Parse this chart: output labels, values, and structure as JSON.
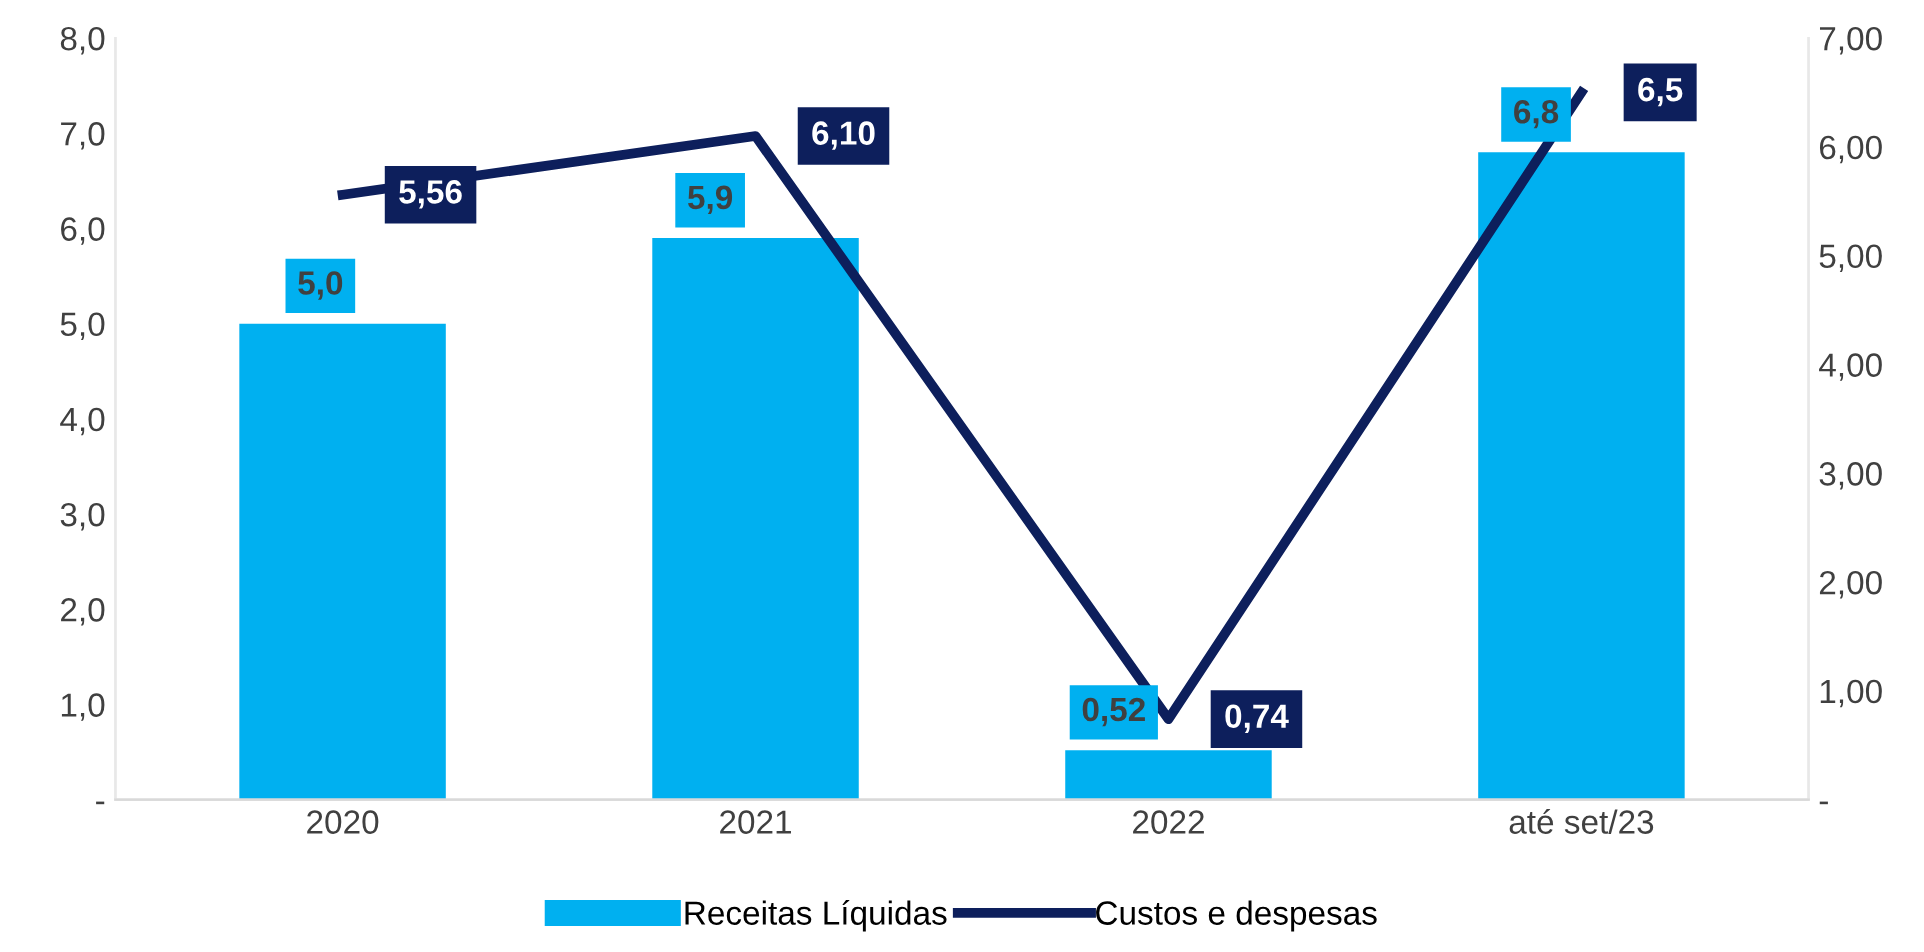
{
  "chart_data": {
    "type": "bar",
    "categories": [
      "2020",
      "2021",
      "2022",
      "até set/23"
    ],
    "series": [
      {
        "name": "Receitas Líquidas",
        "type": "bar",
        "color": "#00b0f0",
        "values": [
          5.0,
          5.9,
          0.52,
          6.8
        ],
        "value_labels": [
          "5,0",
          "5,9",
          "0,52",
          "6,8"
        ]
      },
      {
        "name": "Custos e despesas",
        "type": "line",
        "axis": "y2",
        "color": "#0d1f5c",
        "values": [
          5.56,
          6.1,
          0.74,
          6.5
        ],
        "value_labels": [
          "5,56",
          "6,10",
          "0,74",
          "6,5"
        ]
      }
    ],
    "ylim": [
      0,
      8
    ],
    "yticks": [
      {
        "value": 0,
        "label": "-"
      },
      {
        "value": 1,
        "label": "1,0"
      },
      {
        "value": 2,
        "label": "2,0"
      },
      {
        "value": 3,
        "label": "3,0"
      },
      {
        "value": 4,
        "label": "4,0"
      },
      {
        "value": 5,
        "label": "5,0"
      },
      {
        "value": 6,
        "label": "6,0"
      },
      {
        "value": 7,
        "label": "7,0"
      },
      {
        "value": 8,
        "label": "8,0"
      }
    ],
    "y2lim": [
      0,
      7
    ],
    "y2ticks": [
      {
        "value": 0,
        "label": "-"
      },
      {
        "value": 1,
        "label": "1,00"
      },
      {
        "value": 2,
        "label": "2,00"
      },
      {
        "value": 3,
        "label": "3,00"
      },
      {
        "value": 4,
        "label": "4,00"
      },
      {
        "value": 5,
        "label": "5,00"
      },
      {
        "value": 6,
        "label": "6,00"
      },
      {
        "value": 7,
        "label": "7,00"
      }
    ],
    "legend": "bottom",
    "grid": false,
    "marker": "none",
    "line_style": "solid"
  }
}
